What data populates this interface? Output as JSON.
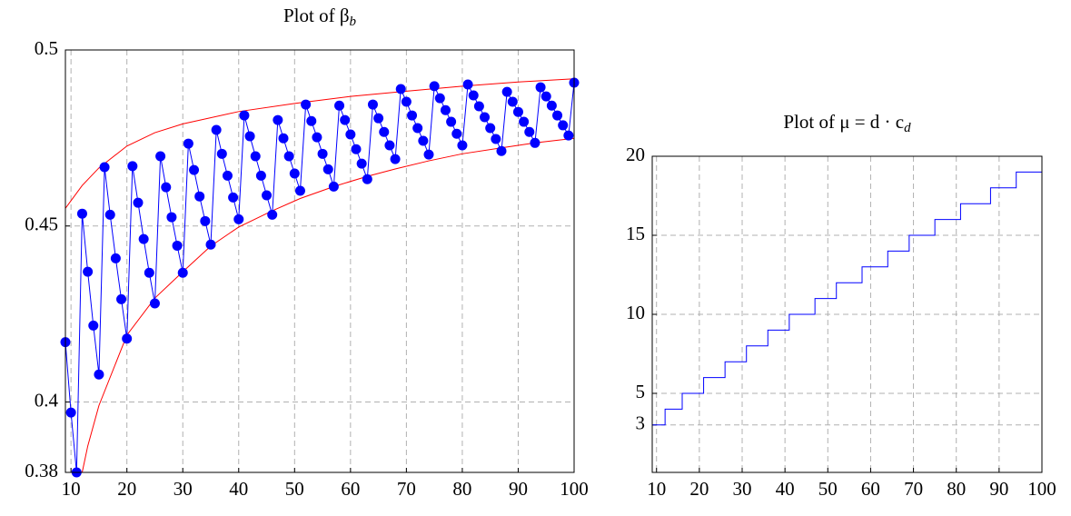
{
  "chart_data": [
    {
      "type": "line",
      "title": "Plot of β",
      "title_subscript": "b",
      "xlim": [
        9,
        100
      ],
      "xticks": [
        10,
        20,
        30,
        40,
        50,
        60,
        70,
        80,
        90,
        100
      ],
      "ylim": [
        0.38,
        0.5
      ],
      "yticks": [
        0.38,
        0.4,
        0.45,
        0.5
      ],
      "grid": true,
      "series": [
        {
          "color": "#ff0000",
          "markers": false,
          "x": [
            9,
            12,
            15,
            20,
            25,
            30,
            40,
            50,
            60,
            70,
            80,
            90,
            100
          ],
          "values": [
            0.455,
            0.4615,
            0.4665,
            0.4727,
            0.4765,
            0.479,
            0.4825,
            0.4848,
            0.4868,
            0.4883,
            0.4897,
            0.4909,
            0.4918
          ]
        },
        {
          "color": "#ff0000",
          "markers": false,
          "x": [
            12,
            13,
            15,
            20,
            25,
            30,
            35,
            40,
            46,
            51,
            57,
            63,
            68,
            74,
            80,
            87,
            93,
            100
          ],
          "values": [
            0.38,
            0.3875,
            0.399,
            0.419,
            0.4295,
            0.437,
            0.4443,
            0.4497,
            0.4543,
            0.4578,
            0.4612,
            0.4641,
            0.4662,
            0.4685,
            0.4705,
            0.4722,
            0.4736,
            0.4749
          ]
        },
        {
          "color": "#0000ff",
          "markers": true,
          "x": [
            9,
            10,
            11,
            12,
            13,
            14,
            15,
            16,
            17,
            18,
            19,
            20,
            21,
            22,
            23,
            24,
            25,
            26,
            27,
            28,
            29,
            30,
            31,
            32,
            33,
            34,
            35,
            36,
            37,
            38,
            39,
            40,
            41,
            42,
            43,
            44,
            45,
            46,
            47,
            48,
            49,
            50,
            51,
            52,
            53,
            54,
            55,
            56,
            57,
            58,
            59,
            60,
            61,
            62,
            63,
            64,
            65,
            66,
            67,
            68,
            69,
            70,
            71,
            72,
            73,
            74,
            75,
            76,
            77,
            78,
            79,
            80,
            81,
            82,
            83,
            84,
            85,
            86,
            87,
            88,
            89,
            90,
            91,
            92,
            93,
            94,
            95,
            96,
            97,
            98,
            99,
            100
          ],
          "values": [
            0.417,
            0.397,
            0.38,
            0.4535,
            0.437,
            0.4217,
            0.4078,
            0.4667,
            0.4532,
            0.4408,
            0.4292,
            0.418,
            0.467,
            0.4566,
            0.4463,
            0.4367,
            0.428,
            0.4698,
            0.461,
            0.4525,
            0.4444,
            0.4367,
            0.4734,
            0.4659,
            0.4584,
            0.4514,
            0.4447,
            0.4773,
            0.4705,
            0.4643,
            0.4581,
            0.4519,
            0.4814,
            0.4755,
            0.4698,
            0.4643,
            0.4587,
            0.4532,
            0.4801,
            0.4749,
            0.4698,
            0.4649,
            0.46,
            0.4845,
            0.4798,
            0.4752,
            0.4705,
            0.4661,
            0.4612,
            0.4842,
            0.4801,
            0.476,
            0.4718,
            0.4677,
            0.4633,
            0.4845,
            0.4806,
            0.4767,
            0.4729,
            0.469,
            0.4889,
            0.4853,
            0.4814,
            0.4778,
            0.4742,
            0.4703,
            0.4897,
            0.4863,
            0.4829,
            0.4796,
            0.4762,
            0.4729,
            0.4902,
            0.4871,
            0.484,
            0.4809,
            0.4778,
            0.4747,
            0.4713,
            0.4881,
            0.4853,
            0.4824,
            0.4796,
            0.4767,
            0.4736,
            0.4894,
            0.4868,
            0.4842,
            0.4814,
            0.4786,
            0.4757,
            0.4907
          ]
        }
      ]
    },
    {
      "type": "line",
      "title": "Plot of μ = d · c",
      "title_subscript": "d",
      "xlim": [
        9,
        100
      ],
      "xticks": [
        10,
        20,
        30,
        40,
        50,
        60,
        70,
        80,
        90,
        100
      ],
      "ylim": [
        0,
        20
      ],
      "yticks": [
        3,
        5,
        10,
        15,
        20
      ],
      "grid": true,
      "step": true,
      "series": [
        {
          "color": "#0000ff",
          "markers": false,
          "x": [
            9,
            10,
            11,
            12,
            13,
            14,
            15,
            16,
            17,
            18,
            19,
            20,
            21,
            22,
            23,
            24,
            25,
            26,
            27,
            28,
            29,
            30,
            31,
            32,
            33,
            34,
            35,
            36,
            37,
            38,
            39,
            40,
            41,
            42,
            43,
            44,
            45,
            46,
            47,
            48,
            49,
            50,
            51,
            52,
            53,
            54,
            55,
            56,
            57,
            58,
            59,
            60,
            61,
            62,
            63,
            64,
            65,
            66,
            67,
            68,
            69,
            70,
            71,
            72,
            73,
            74,
            75,
            76,
            77,
            78,
            79,
            80,
            81,
            82,
            83,
            84,
            85,
            86,
            87,
            88,
            89,
            90,
            91,
            92,
            93,
            94,
            95,
            96,
            97,
            98,
            99,
            100
          ],
          "values": [
            3,
            3,
            3,
            4,
            4,
            4,
            4,
            5,
            5,
            5,
            5,
            5,
            6,
            6,
            6,
            6,
            6,
            7,
            7,
            7,
            7,
            7,
            8,
            8,
            8,
            8,
            8,
            9,
            9,
            9,
            9,
            9,
            10,
            10,
            10,
            10,
            10,
            10,
            11,
            11,
            11,
            11,
            11,
            12,
            12,
            12,
            12,
            12,
            12,
            13,
            13,
            13,
            13,
            13,
            13,
            14,
            14,
            14,
            14,
            14,
            15,
            15,
            15,
            15,
            15,
            15,
            16,
            16,
            16,
            16,
            16,
            16,
            17,
            17,
            17,
            17,
            17,
            17,
            17,
            18,
            18,
            18,
            18,
            18,
            18,
            19,
            19,
            19,
            19,
            19,
            19,
            20
          ]
        }
      ]
    }
  ]
}
